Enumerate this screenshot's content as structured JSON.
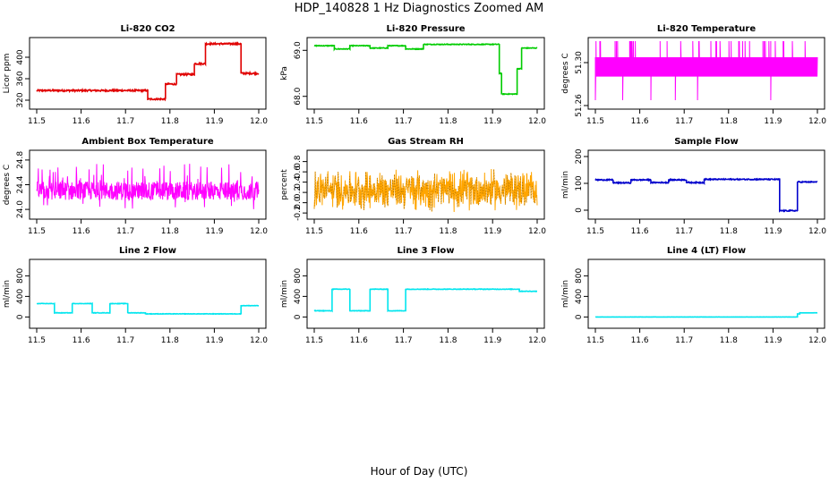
{
  "figure": {
    "title": "HDP_140828  1 Hz Diagnostics Zoomed AM",
    "xlabel": "Hour of Day (UTC)"
  },
  "chart_data": [
    {
      "id": "co2",
      "type": "line",
      "title": "Li-820 CO2",
      "ylabel": "Licor ppm",
      "color": "#e00000",
      "xlim": [
        11.5,
        12.0
      ],
      "xticks": [
        11.5,
        11.6,
        11.7,
        11.8,
        11.9,
        12.0
      ],
      "xtick_labels": [
        "11.5",
        "11.6",
        "11.7",
        "11.8",
        "11.9",
        "12.0"
      ],
      "ylim": [
        310,
        430
      ],
      "yticks": [
        320,
        360,
        400
      ],
      "ytick_labels": [
        "320",
        "360",
        "400"
      ],
      "noise": 1.5,
      "segments": [
        [
          11.5,
          11.75,
          338
        ],
        [
          11.75,
          11.79,
          322
        ],
        [
          11.79,
          11.815,
          350
        ],
        [
          11.815,
          11.855,
          368
        ],
        [
          11.855,
          11.88,
          388
        ],
        [
          11.88,
          11.96,
          425
        ],
        [
          11.96,
          12.0,
          370
        ]
      ]
    },
    {
      "id": "pressure",
      "type": "line",
      "title": "Li-820 Pressure",
      "ylabel": "kPa",
      "color": "#00cc00",
      "xlim": [
        11.5,
        12.0
      ],
      "xticks": [
        11.5,
        11.6,
        11.7,
        11.8,
        11.9,
        12.0
      ],
      "xtick_labels": [
        "11.5",
        "11.6",
        "11.7",
        "11.8",
        "11.9",
        "12.0"
      ],
      "ylim": [
        67.8,
        69.2
      ],
      "yticks": [
        68.0,
        69.0
      ],
      "ytick_labels": [
        "68.0",
        "69.0"
      ],
      "noise": 0.008,
      "segments": [
        [
          11.5,
          11.545,
          69.1
        ],
        [
          11.545,
          11.58,
          69.03
        ],
        [
          11.58,
          11.625,
          69.1
        ],
        [
          11.625,
          11.665,
          69.05
        ],
        [
          11.665,
          11.705,
          69.1
        ],
        [
          11.705,
          11.745,
          69.03
        ],
        [
          11.745,
          11.915,
          69.13
        ],
        [
          11.915,
          11.92,
          68.5
        ],
        [
          11.92,
          11.955,
          68.05
        ],
        [
          11.955,
          11.965,
          68.6
        ],
        [
          11.965,
          12.0,
          69.05
        ]
      ]
    },
    {
      "id": "licor_temp",
      "type": "line",
      "title": "Li-820 Temperature",
      "ylabel": "degrees C",
      "color": "#ff00ff",
      "xlim": [
        11.5,
        12.0
      ],
      "xticks": [
        11.5,
        11.6,
        11.7,
        11.8,
        11.9,
        12.0
      ],
      "xtick_labels": [
        "11.5",
        "11.6",
        "11.7",
        "11.8",
        "11.9",
        "12.0"
      ],
      "ylim": [
        51.26,
        51.32
      ],
      "yticks": [
        51.26,
        51.3
      ],
      "ytick_labels": [
        "51.26",
        "51.30"
      ],
      "band": [
        51.287,
        51.305
      ],
      "spike_high": 51.32,
      "spike_low": 51.265,
      "spike_count": 45
    },
    {
      "id": "box_temp",
      "type": "line",
      "title": "Ambient Box Temperature",
      "ylabel": "degrees C",
      "color": "#ff00ff",
      "xlim": [
        11.5,
        12.0
      ],
      "xticks": [
        11.5,
        11.6,
        11.7,
        11.8,
        11.9,
        12.0
      ],
      "xtick_labels": [
        "11.5",
        "11.6",
        "11.7",
        "11.8",
        "11.9",
        "12.0"
      ],
      "ylim": [
        23.9,
        24.9
      ],
      "yticks": [
        24.0,
        24.4,
        24.8
      ],
      "ytick_labels": [
        "24.0",
        "24.4",
        "24.8"
      ],
      "band": [
        24.15,
        24.45
      ],
      "extreme": [
        24.0,
        24.75
      ]
    },
    {
      "id": "rh",
      "type": "line",
      "title": "Gas Stream RH",
      "ylabel": "percent",
      "color": "#ffa500",
      "color2": "#8a5a00",
      "xlim": [
        11.5,
        12.0
      ],
      "xticks": [
        11.5,
        11.6,
        11.7,
        11.8,
        11.9,
        12.0
      ],
      "xtick_labels": [
        "11.5",
        "11.6",
        "11.7",
        "11.8",
        "11.9",
        "12.0"
      ],
      "ylim": [
        -0.25,
        0.95
      ],
      "yticks": [
        -0.2,
        0.0,
        0.2,
        0.4,
        0.6,
        0.8
      ],
      "ytick_labels": [
        "-0.2",
        "0.0",
        "0.2",
        "0.4",
        "0.6",
        "0.8"
      ],
      "center": 0.25,
      "spread": 0.55
    },
    {
      "id": "sample_flow",
      "type": "line",
      "title": "Sample Flow",
      "ylabel": "ml/min",
      "color": "#0000cc",
      "xlim": [
        11.5,
        12.0
      ],
      "xticks": [
        11.5,
        11.6,
        11.7,
        11.8,
        11.9,
        12.0
      ],
      "xtick_labels": [
        "11.5",
        "11.6",
        "11.7",
        "11.8",
        "11.9",
        "12.0"
      ],
      "ylim": [
        -20,
        210
      ],
      "yticks": [
        0,
        100,
        200
      ],
      "ytick_labels": [
        "0",
        "100",
        "200"
      ],
      "noise": 2,
      "segments": [
        [
          11.5,
          11.54,
          113
        ],
        [
          11.54,
          11.58,
          102
        ],
        [
          11.58,
          11.625,
          113
        ],
        [
          11.625,
          11.665,
          103
        ],
        [
          11.665,
          11.705,
          113
        ],
        [
          11.705,
          11.745,
          103
        ],
        [
          11.745,
          11.915,
          115
        ],
        [
          11.915,
          11.955,
          -2
        ],
        [
          11.955,
          12.0,
          105
        ]
      ]
    },
    {
      "id": "line2",
      "type": "line",
      "title": "Line 2 Flow",
      "ylabel": "ml/min",
      "color": "#00e5ee",
      "xlim": [
        11.5,
        12.0
      ],
      "xticks": [
        11.5,
        11.6,
        11.7,
        11.8,
        11.9,
        12.0
      ],
      "xtick_labels": [
        "11.5",
        "11.6",
        "11.7",
        "11.8",
        "11.9",
        "12.0"
      ],
      "ylim": [
        -150,
        1050
      ],
      "yticks": [
        0,
        400,
        800
      ],
      "ytick_labels": [
        "0",
        "400",
        "800"
      ],
      "noise": 4,
      "segments": [
        [
          11.5,
          11.54,
          260
        ],
        [
          11.54,
          11.58,
          80
        ],
        [
          11.58,
          11.625,
          260
        ],
        [
          11.625,
          11.665,
          80
        ],
        [
          11.665,
          11.705,
          260
        ],
        [
          11.705,
          11.745,
          80
        ],
        [
          11.745,
          11.96,
          60
        ],
        [
          11.96,
          12.0,
          220
        ]
      ]
    },
    {
      "id": "line3",
      "type": "line",
      "title": "Line 3 Flow",
      "ylabel": "ml/min",
      "color": "#00e5ee",
      "xlim": [
        11.5,
        12.0
      ],
      "xticks": [
        11.5,
        11.6,
        11.7,
        11.8,
        11.9,
        12.0
      ],
      "xtick_labels": [
        "11.5",
        "11.6",
        "11.7",
        "11.8",
        "11.9",
        "12.0"
      ],
      "ylim": [
        -150,
        1050
      ],
      "yticks": [
        0,
        400,
        800
      ],
      "ytick_labels": [
        "0",
        "400",
        "800"
      ],
      "noise": 5,
      "segments": [
        [
          11.5,
          11.54,
          120
        ],
        [
          11.54,
          11.58,
          540
        ],
        [
          11.58,
          11.625,
          120
        ],
        [
          11.625,
          11.665,
          540
        ],
        [
          11.665,
          11.705,
          120
        ],
        [
          11.705,
          11.96,
          540
        ],
        [
          11.96,
          12.0,
          500
        ]
      ]
    },
    {
      "id": "line4",
      "type": "line",
      "title": "Line 4 (LT) Flow",
      "ylabel": "ml/min",
      "color": "#00e5ee",
      "xlim": [
        11.5,
        12.0
      ],
      "xticks": [
        11.5,
        11.6,
        11.7,
        11.8,
        11.9,
        12.0
      ],
      "xtick_labels": [
        "11.5",
        "11.6",
        "11.7",
        "11.8",
        "11.9",
        "12.0"
      ],
      "ylim": [
        -150,
        1050
      ],
      "yticks": [
        0,
        400,
        800
      ],
      "ytick_labels": [
        "0",
        "400",
        "800"
      ],
      "noise": 1,
      "segments": [
        [
          11.5,
          11.955,
          0
        ],
        [
          11.955,
          11.96,
          60
        ],
        [
          11.96,
          12.0,
          80
        ]
      ]
    }
  ]
}
